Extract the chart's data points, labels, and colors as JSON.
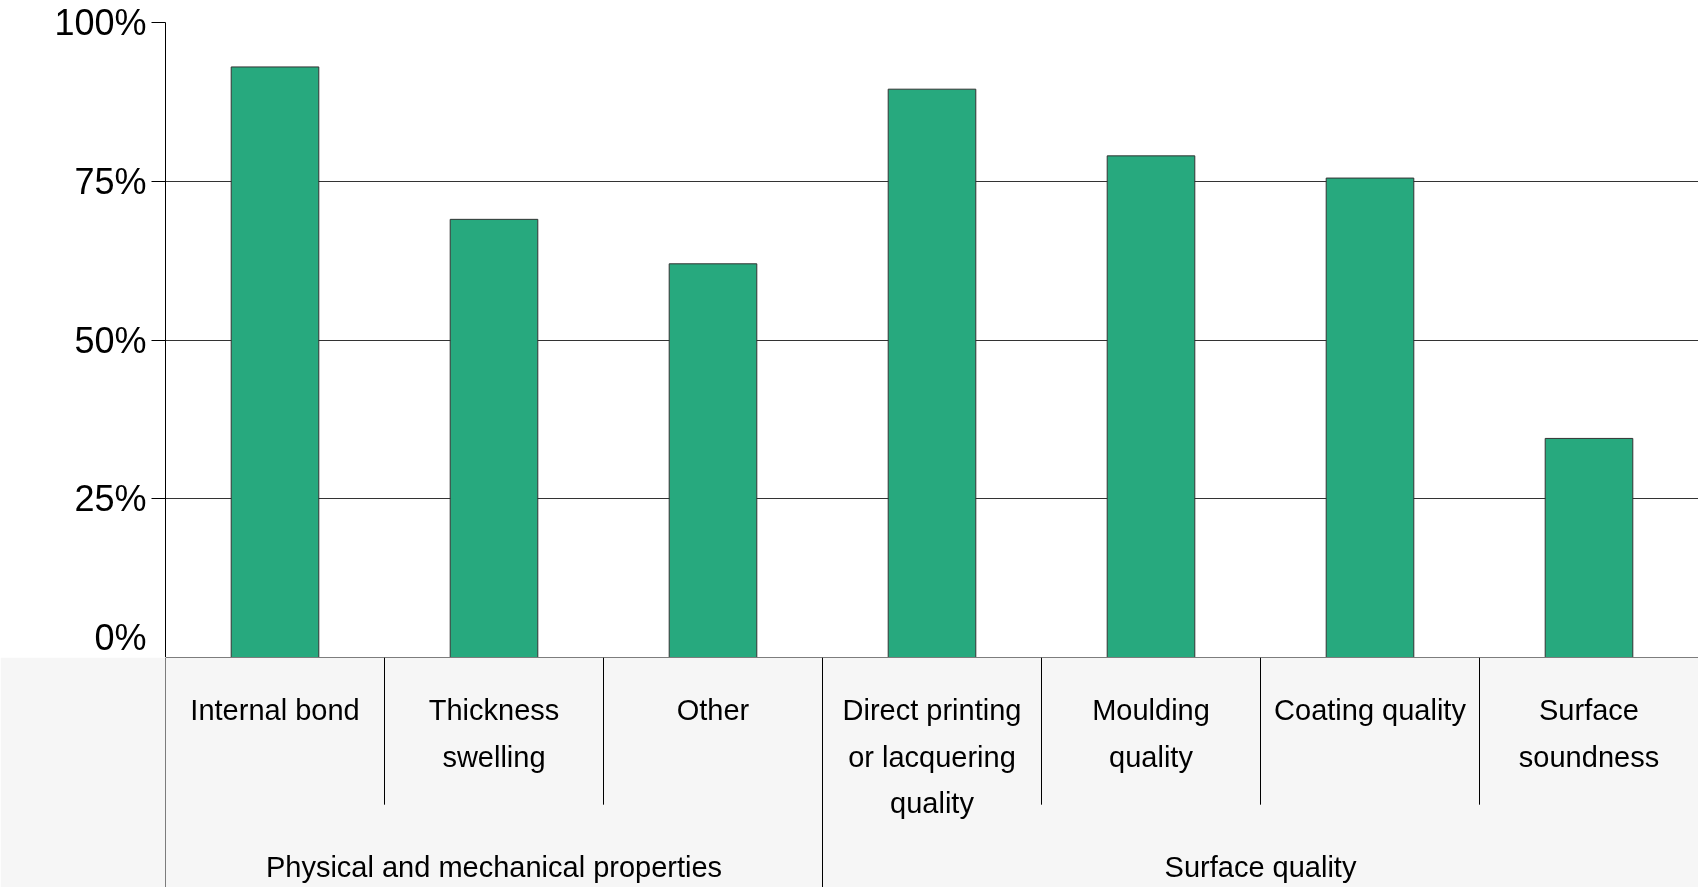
{
  "chart_data": {
    "type": "bar",
    "categories": [
      "Internal bond",
      "Thickness swelling",
      "Other",
      "Direct printing or lacquering quality",
      "Moulding quality",
      "Coating quality",
      "Surface soundness"
    ],
    "values": [
      93,
      69,
      62,
      89.5,
      79,
      75.5,
      34.5
    ],
    "color": "#27a97e",
    "ylim": [
      0,
      100
    ],
    "yticks": [
      {
        "value": 0,
        "label": "0%"
      },
      {
        "value": 25,
        "label": "25%"
      },
      {
        "value": 50,
        "label": "50%"
      },
      {
        "value": 75,
        "label": "75%"
      },
      {
        "value": 100,
        "label": "100%"
      }
    ],
    "grid": "y",
    "annotations": [
      "Physical and mechanical properties",
      "Surface quality"
    ]
  }
}
